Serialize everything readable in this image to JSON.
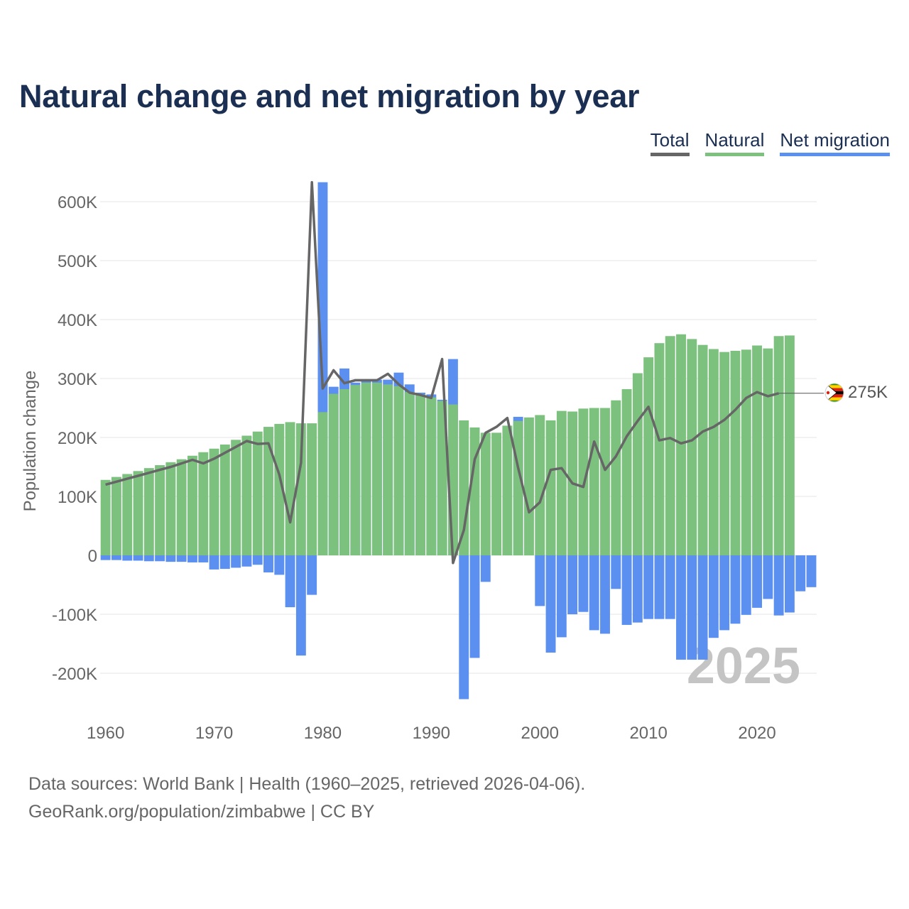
{
  "chart_data": {
    "type": "bar",
    "title": "Natural change and net migration by year",
    "xlabel": "",
    "ylabel": "Population change",
    "ylim": [
      -260000,
      660000
    ],
    "xlim": [
      1959.5,
      2025.5
    ],
    "x_ticks": [
      1960,
      1970,
      1980,
      1990,
      2000,
      2010,
      2020
    ],
    "x_tick_labels": [
      "1960",
      "1970",
      "1980",
      "1990",
      "2000",
      "2010",
      "2020"
    ],
    "y_ticks": [
      -200000,
      -100000,
      0,
      100000,
      200000,
      300000,
      400000,
      500000,
      600000
    ],
    "y_tick_labels": [
      "-200K",
      "-100K",
      "0",
      "100K",
      "200K",
      "300K",
      "400K",
      "500K",
      "600K"
    ],
    "grid": true,
    "legend": [
      {
        "name": "Total",
        "color": "#666666"
      },
      {
        "name": "Natural",
        "color": "#7dc17f"
      },
      {
        "name": "Net migration",
        "color": "#5b8ff0"
      }
    ],
    "x": [
      1960,
      1961,
      1962,
      1963,
      1964,
      1965,
      1966,
      1967,
      1968,
      1969,
      1970,
      1971,
      1972,
      1973,
      1974,
      1975,
      1976,
      1977,
      1978,
      1979,
      1980,
      1981,
      1982,
      1983,
      1984,
      1985,
      1986,
      1987,
      1988,
      1989,
      1990,
      1991,
      1992,
      1993,
      1994,
      1995,
      1996,
      1997,
      1998,
      1999,
      2000,
      2001,
      2002,
      2003,
      2004,
      2005,
      2006,
      2007,
      2008,
      2009,
      2010,
      2011,
      2012,
      2013,
      2014,
      2015,
      2016,
      2017,
      2018,
      2019,
      2020,
      2021,
      2022,
      2023,
      2024,
      2025
    ],
    "series": [
      {
        "name": "Natural",
        "color": "#7dc17f",
        "values": [
          128000,
          133000,
          138000,
          143000,
          148000,
          153000,
          158000,
          163000,
          169000,
          175000,
          181000,
          188000,
          196000,
          203000,
          210000,
          218000,
          223000,
          226000,
          224000,
          224000,
          243000,
          274000,
          282000,
          289000,
          293000,
          293000,
          290000,
          287000,
          277000,
          273000,
          268000,
          262000,
          256000,
          229000,
          217000,
          208000,
          208000,
          220000,
          228000,
          234000,
          238000,
          229000,
          245000,
          244000,
          249000,
          250000,
          250000,
          263000,
          282000,
          309000,
          336000,
          360000,
          372000,
          375000,
          367000,
          357000,
          350000,
          345000,
          347000,
          349000,
          356000,
          351000,
          372000,
          373000,
          0,
          0
        ]
      },
      {
        "name": "Net migration",
        "color": "#5b8ff0",
        "values": [
          -8000,
          -8000,
          -9000,
          -9000,
          -10000,
          -10000,
          -11000,
          -11000,
          -12000,
          -12000,
          -24000,
          -23000,
          -21000,
          -19000,
          -16000,
          -29000,
          -33000,
          -88000,
          -170000,
          -67000,
          633000,
          286000,
          317000,
          293000,
          298000,
          298000,
          298000,
          310000,
          290000,
          276000,
          273000,
          264000,
          333000,
          -244000,
          -174000,
          -45000,
          0,
          0,
          235000,
          0,
          -86000,
          -165000,
          -139000,
          -100000,
          -96000,
          -127000,
          -133000,
          -57000,
          -118000,
          -114000,
          -108000,
          -108000,
          -108000,
          -177000,
          -177000,
          -177000,
          -140000,
          -127000,
          -116000,
          -101000,
          -89000,
          -74000,
          -102000,
          -97000,
          -61000,
          -54000
        ]
      },
      {
        "name": "Total",
        "color": "#666666",
        "type": "line",
        "values": [
          120000,
          125000,
          130000,
          135000,
          140000,
          145000,
          150000,
          156000,
          162000,
          156000,
          164000,
          174000,
          184000,
          194000,
          189000,
          190000,
          137000,
          56000,
          157000,
          633000,
          283000,
          314000,
          292000,
          297000,
          297000,
          297000,
          308000,
          290000,
          276000,
          272000,
          267000,
          333000,
          -13000,
          43000,
          163000,
          208000,
          218000,
          233000,
          148000,
          73000,
          90000,
          145000,
          148000,
          122000,
          116000,
          193000,
          145000,
          168000,
          202000,
          228000,
          252000,
          195000,
          199000,
          190000,
          195000,
          210000,
          218000,
          230000,
          247000,
          267000,
          277000,
          270000,
          275000,
          null,
          null,
          null
        ]
      }
    ],
    "total_marker_label": "275K",
    "year_watermark": "2025"
  },
  "footer": {
    "sources": "Data sources: World Bank | Health (1960–2025, retrieved 2026-04-06).",
    "attribution": "GeoRank.org/population/zimbabwe | CC BY"
  }
}
